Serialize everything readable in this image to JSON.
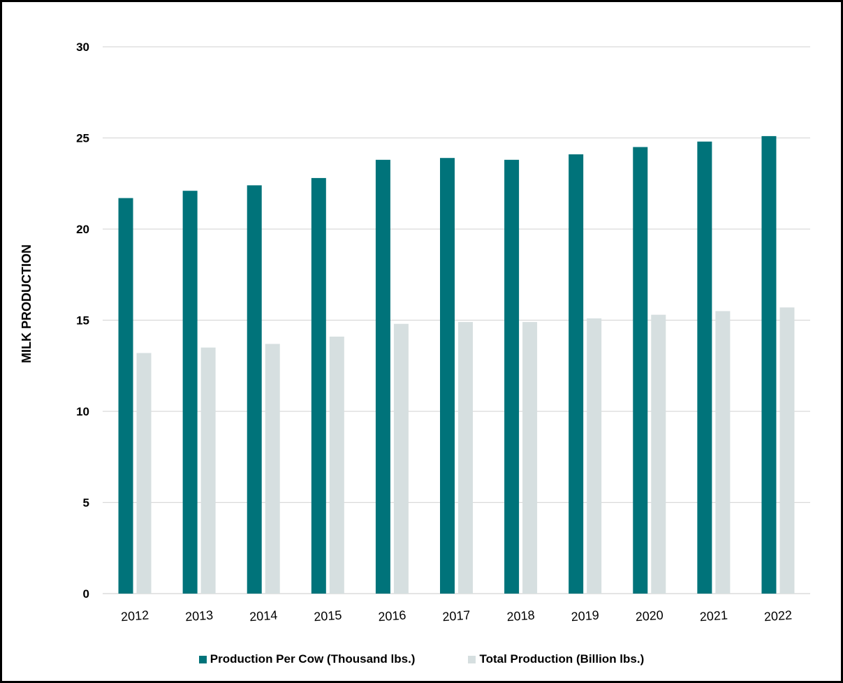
{
  "chart_data": {
    "type": "bar",
    "title": "",
    "xlabel": "",
    "ylabel": "MILK PRODUCTION",
    "ylim": [
      0,
      30
    ],
    "yticks": [
      0,
      5,
      10,
      15,
      20,
      25,
      30
    ],
    "grid": true,
    "legend_position": "bottom",
    "categories": [
      "2012",
      "2013",
      "2014",
      "2015",
      "2016",
      "2017",
      "2018",
      "2019",
      "2020",
      "2021",
      "2022"
    ],
    "series": [
      {
        "name": "Production Per Cow (Thousand lbs.)",
        "color": "#00737A",
        "values": [
          21.7,
          22.1,
          22.4,
          22.8,
          23.8,
          23.9,
          23.8,
          24.1,
          24.5,
          24.8,
          25.1
        ]
      },
      {
        "name": "Total  Production (Billion lbs.)",
        "color": "#D6DFE0",
        "values": [
          13.2,
          13.5,
          13.7,
          14.1,
          14.8,
          14.9,
          14.9,
          15.1,
          15.3,
          15.5,
          15.7
        ]
      }
    ]
  }
}
